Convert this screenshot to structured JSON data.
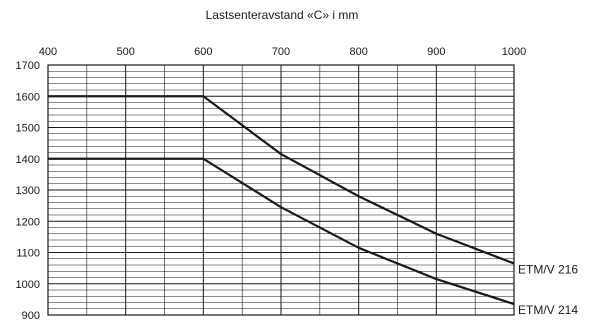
{
  "chart_data": {
    "type": "line",
    "title": "Lastsenteravstand «C» i mm",
    "xlabel": "Lastsenteravstand «C» i mm",
    "ylabel": "",
    "xlim": [
      400,
      1000
    ],
    "ylim": [
      900,
      1700
    ],
    "x_ticks": [
      400,
      500,
      600,
      700,
      800,
      900,
      1000
    ],
    "y_ticks": [
      900,
      1000,
      1100,
      1200,
      1300,
      1400,
      1500,
      1600,
      1700
    ],
    "x_axis_position": "top",
    "grid": true,
    "series": [
      {
        "name": "ETM/V 216",
        "x": [
          400,
          600,
          700,
          800,
          900,
          1000
        ],
        "y": [
          1600,
          1600,
          1415,
          1280,
          1160,
          1065
        ]
      },
      {
        "name": "ETM/V 214",
        "x": [
          400,
          600,
          700,
          800,
          900,
          1000
        ],
        "y": [
          1400,
          1400,
          1245,
          1115,
          1015,
          935
        ]
      }
    ],
    "legend": "series labels at right end of lines"
  }
}
